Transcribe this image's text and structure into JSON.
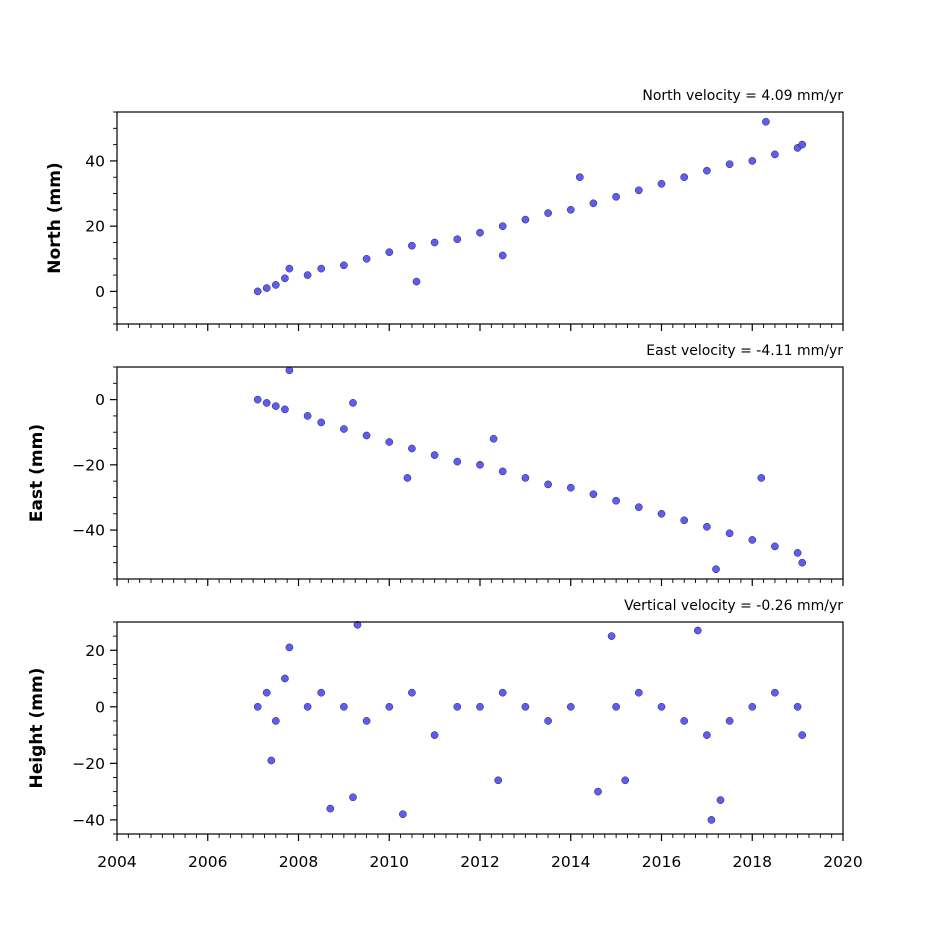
{
  "figure": {
    "marker_fill": "#4f4ff5",
    "marker_edge": "#1a1a1a"
  },
  "chart_data": [
    {
      "type": "scatter",
      "title": "North velocity = 4.09 mm/yr",
      "ylabel": "North (mm)",
      "xlim": [
        2004,
        2020
      ],
      "ylim": [
        -10,
        55
      ],
      "yticks": [
        0,
        20,
        40
      ],
      "xticks": [],
      "grid": false,
      "series": [
        {
          "points": [
            [
              2007.1,
              0
            ],
            [
              2007.3,
              1
            ],
            [
              2007.5,
              2
            ],
            [
              2007.7,
              4
            ],
            [
              2007.8,
              7
            ],
            [
              2008.2,
              5
            ],
            [
              2008.5,
              7
            ],
            [
              2009,
              8
            ],
            [
              2009.5,
              10
            ],
            [
              2010,
              12
            ],
            [
              2010.5,
              14
            ],
            [
              2011,
              15
            ],
            [
              2011.5,
              16
            ],
            [
              2012,
              18
            ],
            [
              2012.5,
              20
            ],
            [
              2013,
              22
            ],
            [
              2013.5,
              24
            ],
            [
              2014,
              25
            ],
            [
              2014.5,
              27
            ],
            [
              2015,
              29
            ],
            [
              2015.5,
              31
            ],
            [
              2016,
              33
            ],
            [
              2016.5,
              35
            ],
            [
              2017,
              37
            ],
            [
              2017.5,
              39
            ],
            [
              2018,
              40
            ],
            [
              2018.5,
              42
            ],
            [
              2019,
              44
            ],
            [
              2019.1,
              45
            ],
            [
              2018.3,
              52
            ],
            [
              2014.2,
              35
            ],
            [
              2010.6,
              3
            ],
            [
              2012.5,
              11
            ]
          ]
        }
      ]
    },
    {
      "type": "scatter",
      "title": "East velocity = -4.11 mm/yr",
      "ylabel": "East (mm)",
      "xlim": [
        2004,
        2020
      ],
      "ylim": [
        -55,
        10
      ],
      "yticks": [
        0,
        -20,
        -40
      ],
      "xticks": [],
      "grid": false,
      "series": [
        {
          "points": [
            [
              2007.1,
              0
            ],
            [
              2007.3,
              -1
            ],
            [
              2007.5,
              -2
            ],
            [
              2007.7,
              -3
            ],
            [
              2007.8,
              9
            ],
            [
              2008.2,
              -5
            ],
            [
              2008.5,
              -7
            ],
            [
              2009,
              -9
            ],
            [
              2009.5,
              -11
            ],
            [
              2010,
              -13
            ],
            [
              2010.5,
              -15
            ],
            [
              2011,
              -17
            ],
            [
              2011.5,
              -19
            ],
            [
              2012,
              -20
            ],
            [
              2012.5,
              -22
            ],
            [
              2013,
              -24
            ],
            [
              2013.5,
              -26
            ],
            [
              2014,
              -27
            ],
            [
              2014.5,
              -29
            ],
            [
              2015,
              -31
            ],
            [
              2015.5,
              -33
            ],
            [
              2016,
              -35
            ],
            [
              2016.5,
              -37
            ],
            [
              2017,
              -39
            ],
            [
              2017.5,
              -41
            ],
            [
              2018,
              -43
            ],
            [
              2018.5,
              -45
            ],
            [
              2019,
              -47
            ],
            [
              2019.1,
              -50
            ],
            [
              2018.2,
              -24
            ],
            [
              2012.3,
              -12
            ],
            [
              2009.2,
              -1
            ],
            [
              2010.4,
              -24
            ],
            [
              2017.2,
              -52
            ]
          ]
        }
      ]
    },
    {
      "type": "scatter",
      "title": "Vertical velocity = -0.26 mm/yr",
      "ylabel": "Height (mm)",
      "xlim": [
        2004,
        2020
      ],
      "ylim": [
        -45,
        30
      ],
      "yticks": [
        20,
        0,
        -20,
        -40
      ],
      "xticks": [
        2004,
        2006,
        2008,
        2010,
        2012,
        2014,
        2016,
        2018,
        2020
      ],
      "grid": false,
      "series": [
        {
          "points": [
            [
              2007.1,
              0
            ],
            [
              2007.3,
              5
            ],
            [
              2007.5,
              -5
            ],
            [
              2007.7,
              10
            ],
            [
              2007.8,
              21
            ],
            [
              2007.4,
              -19
            ],
            [
              2008.2,
              0
            ],
            [
              2008.5,
              5
            ],
            [
              2008.7,
              -36
            ],
            [
              2009,
              0
            ],
            [
              2009.2,
              -32
            ],
            [
              2009.3,
              29
            ],
            [
              2009.5,
              -5
            ],
            [
              2010,
              0
            ],
            [
              2010.3,
              -38
            ],
            [
              2010.5,
              5
            ],
            [
              2011,
              -10
            ],
            [
              2011.5,
              0
            ],
            [
              2012,
              0
            ],
            [
              2012.4,
              -26
            ],
            [
              2012.5,
              5
            ],
            [
              2013,
              0
            ],
            [
              2013.5,
              -5
            ],
            [
              2014,
              0
            ],
            [
              2014.6,
              -30
            ],
            [
              2014.9,
              25
            ],
            [
              2015,
              0
            ],
            [
              2015.2,
              -26
            ],
            [
              2015.5,
              5
            ],
            [
              2016,
              0
            ],
            [
              2016.5,
              -5
            ],
            [
              2016.8,
              27
            ],
            [
              2017,
              -10
            ],
            [
              2017.1,
              -40
            ],
            [
              2017.3,
              -33
            ],
            [
              2017.5,
              -5
            ],
            [
              2018,
              0
            ],
            [
              2018.5,
              5
            ],
            [
              2019,
              0
            ],
            [
              2019.1,
              -10
            ]
          ]
        }
      ]
    }
  ]
}
